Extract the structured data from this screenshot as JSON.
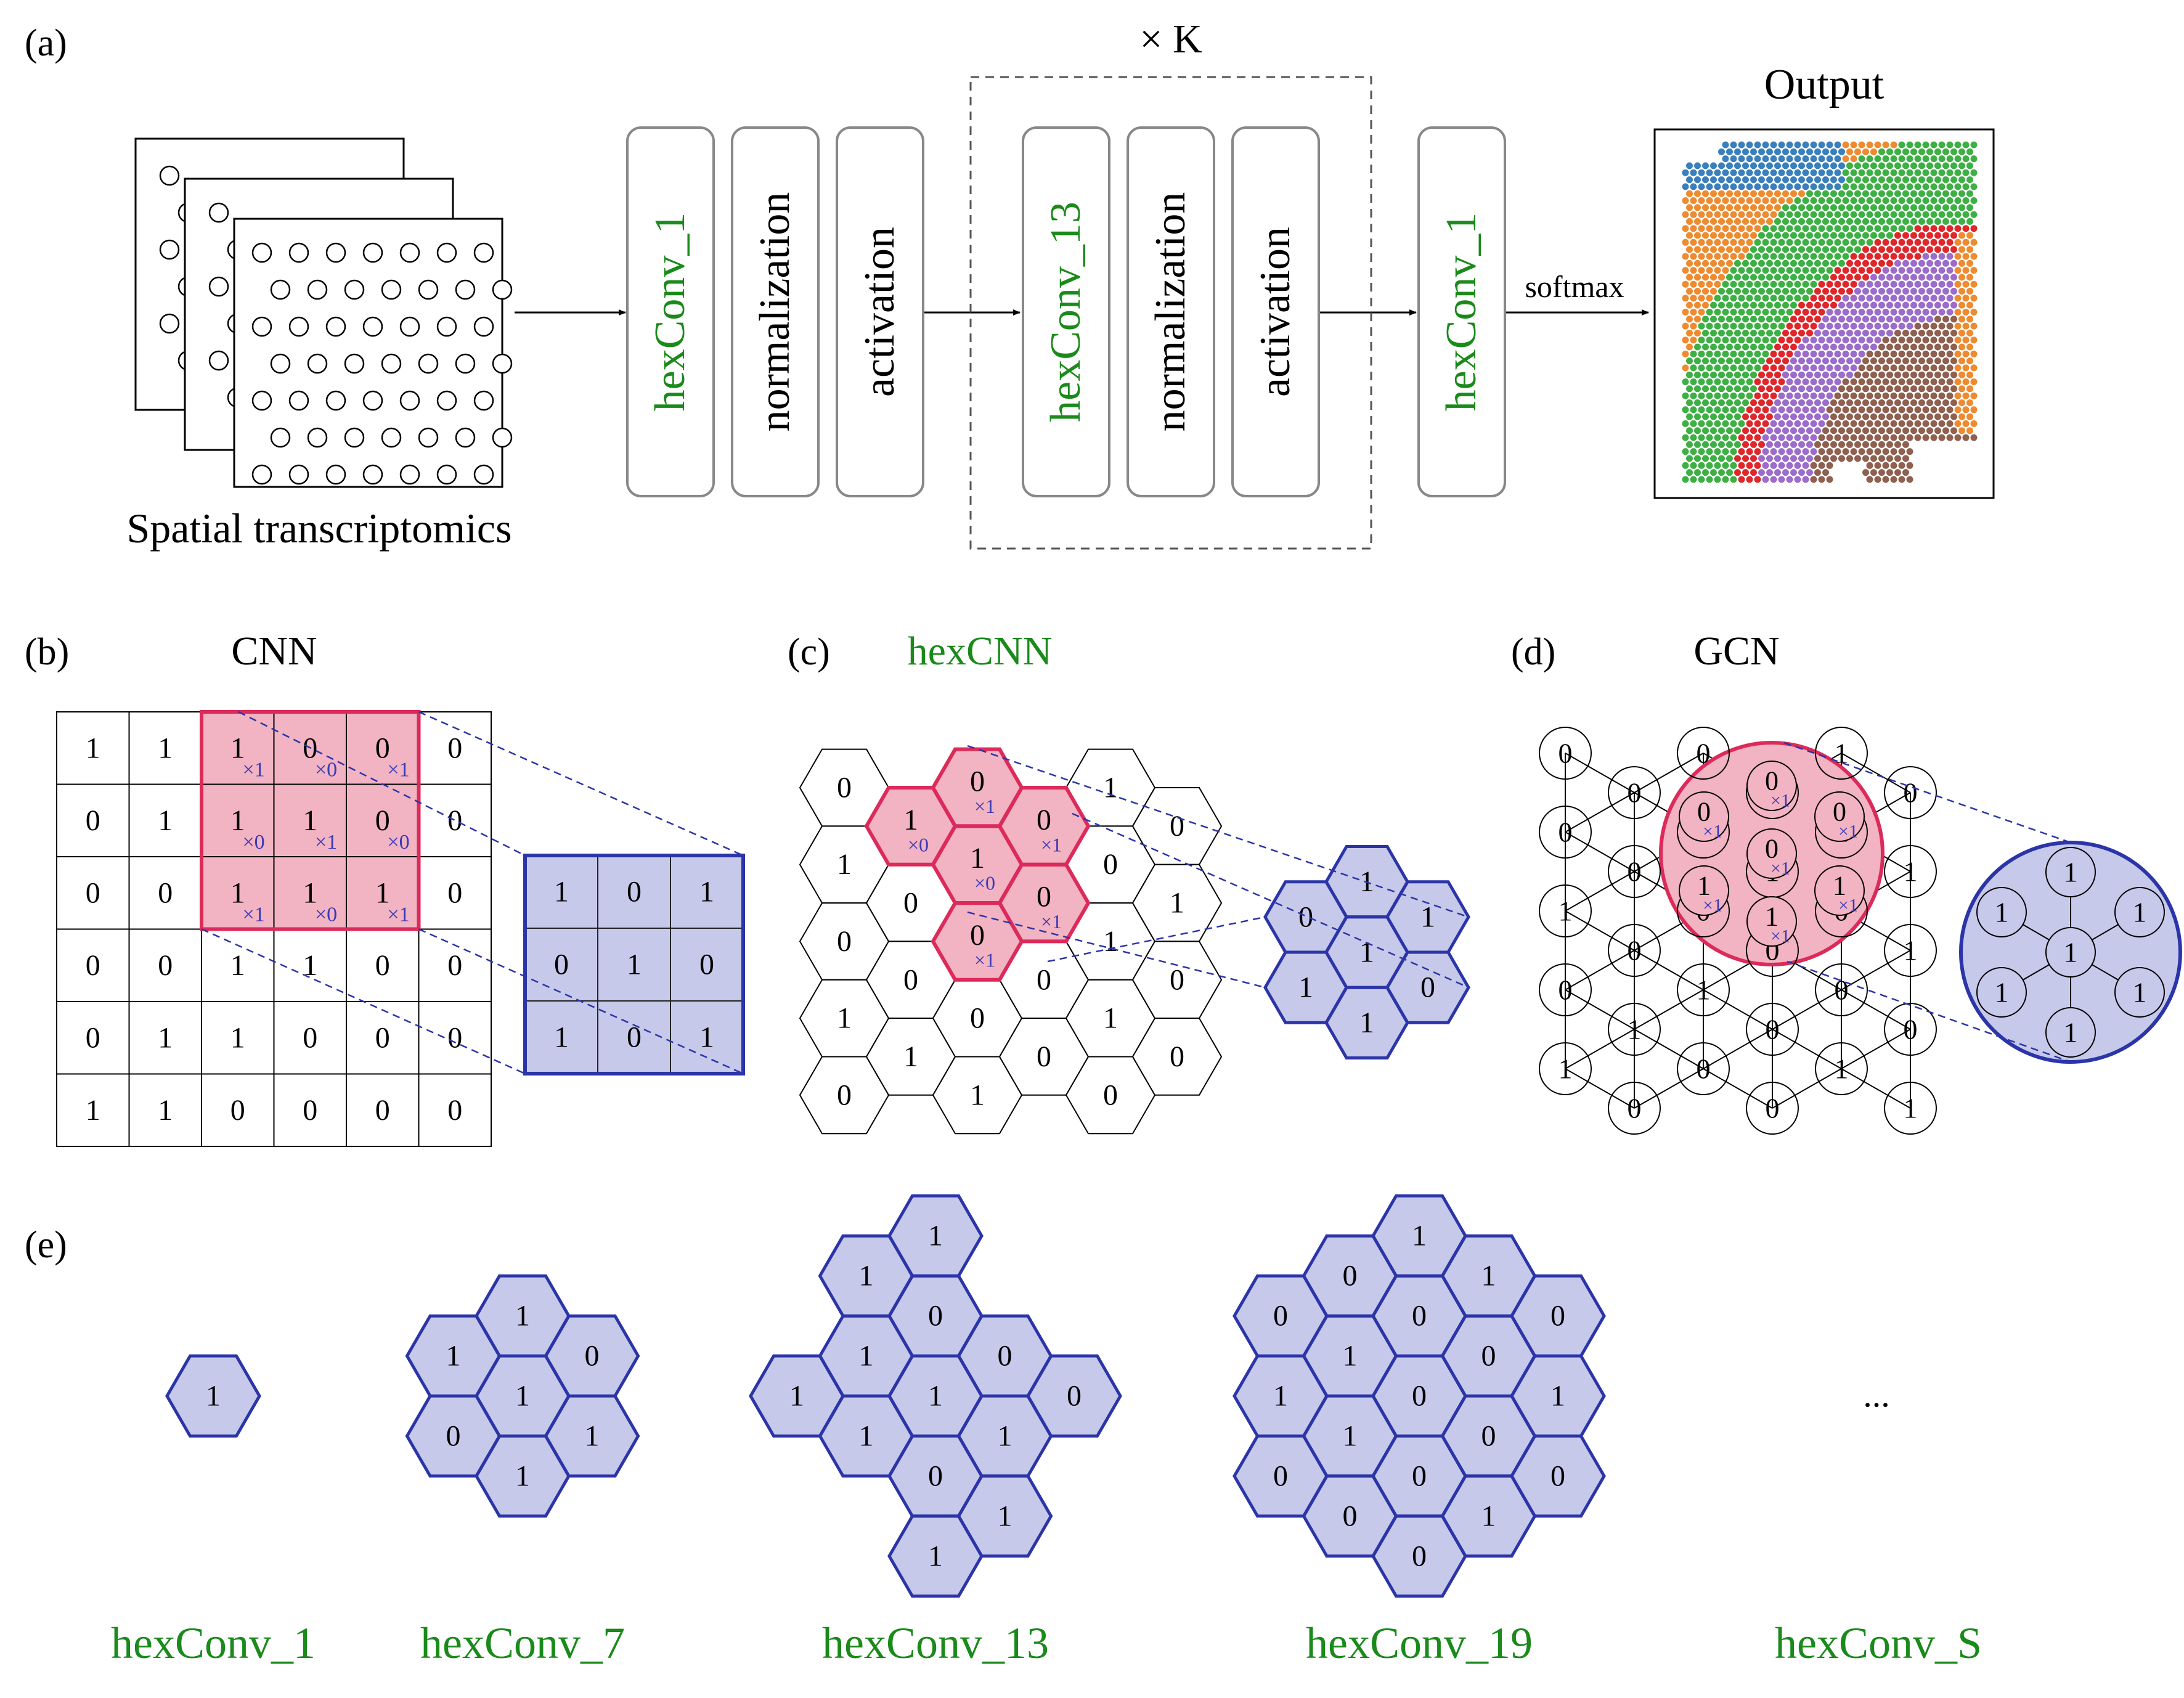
{
  "colors": {
    "green": "#1a8a1a",
    "blue": "#2b35a8",
    "blue_fill": "#c7c9eb",
    "blue_text": "#3a3ab5",
    "red": "#dc2a5a",
    "red_fill": "#f2b3c3",
    "box_stroke": "#888888",
    "cluster_colors": [
      "#3a7fbd",
      "#f08a2e",
      "#3cb043",
      "#e0262a",
      "#9b6ccb",
      "#8f5f4f",
      "#e87fcf"
    ]
  },
  "panel_a": {
    "label": "(a)",
    "input_label": "Spatial transcriptomics",
    "repeat_label": "× K",
    "boxes": [
      "hexConv_1",
      "normalization",
      "activation",
      "hexConv_13",
      "normalization",
      "activation",
      "hexConv_1"
    ],
    "softmax_label": "softmax",
    "output_label": "Output"
  },
  "panel_b": {
    "label": "(b)",
    "title": "CNN",
    "grid": [
      [
        "1",
        "1",
        "1",
        "0",
        "0",
        "0"
      ],
      [
        "0",
        "1",
        "1",
        "1",
        "0",
        "0"
      ],
      [
        "0",
        "0",
        "1",
        "1",
        "1",
        "0"
      ],
      [
        "0",
        "0",
        "1",
        "1",
        "0",
        "0"
      ],
      [
        "0",
        "1",
        "1",
        "0",
        "0",
        "0"
      ],
      [
        "1",
        "1",
        "0",
        "0",
        "0",
        "0"
      ]
    ],
    "weights": [
      [
        "×1",
        "×0",
        "×1"
      ],
      [
        "×0",
        "×1",
        "×0"
      ],
      [
        "×1",
        "×0",
        "×1"
      ]
    ],
    "output": [
      [
        "1",
        "0",
        "1"
      ],
      [
        "0",
        "1",
        "0"
      ],
      [
        "1",
        "0",
        "1"
      ]
    ]
  },
  "panel_c": {
    "label": "(c)",
    "title": "hexCNN",
    "cells": [
      [
        "0",
        "0",
        "1"
      ],
      [
        "0",
        "1",
        "0",
        "0"
      ],
      [
        "0",
        "0",
        "0",
        "1"
      ],
      [
        "0",
        "1",
        "0",
        "1"
      ],
      [
        "0",
        "0",
        "1",
        "1"
      ],
      [
        "0",
        "1",
        "1",
        "0"
      ],
      [
        "1",
        "0",
        "0",
        "0"
      ],
      [
        "1",
        "0",
        "0",
        "0"
      ]
    ],
    "hex_values": [
      "0",
      "1",
      "0",
      "1",
      "0",
      "1",
      "0",
      "0",
      "1",
      "0",
      "1",
      "0",
      "0",
      "1",
      "0",
      "0",
      "0",
      "0",
      "1",
      "0",
      "1",
      "1",
      "0",
      "0",
      "1",
      "0",
      "0",
      "1"
    ],
    "kernel_weights": [
      "×1",
      "×0",
      "×1",
      "×1",
      "×1",
      "×0",
      "×1"
    ],
    "output": [
      "1",
      "0",
      "1",
      "1",
      "1",
      "0",
      "1"
    ]
  },
  "panel_d": {
    "label": "(d)",
    "title": "GCN",
    "node_values": [
      "0",
      "0",
      "1",
      "0",
      "1",
      "0",
      "0",
      "0",
      "1",
      "0",
      "0",
      "1",
      "0",
      "1",
      "0",
      "1",
      "1",
      "0",
      "0",
      "0",
      "1",
      "1",
      "0",
      "0",
      "1",
      "0",
      "1",
      "1",
      "0",
      "1",
      "0",
      "1",
      "0",
      "0"
    ],
    "kernel_values": [
      "0",
      "0",
      "0",
      "0",
      "1",
      "1",
      "1"
    ],
    "kernel_weights": [
      "×1",
      "×1",
      "×1",
      "×1",
      "×1",
      "×1",
      "×1"
    ],
    "output": [
      "1",
      "1",
      "1",
      "1",
      "1",
      "1",
      "1"
    ]
  },
  "panel_e": {
    "label": "(e)",
    "kernels": [
      {
        "name": "hexConv_1",
        "values": [
          "1"
        ]
      },
      {
        "name": "hexConv_7",
        "values": [
          "1",
          "0",
          "1",
          "1",
          "1",
          "0",
          "1"
        ]
      },
      {
        "name": "hexConv_13",
        "values": [
          "1",
          "1",
          "0",
          "1",
          "0",
          "0",
          "1",
          "1",
          "0",
          "1",
          "1",
          "1",
          "1"
        ]
      },
      {
        "name": "hexConv_19",
        "values": [
          "0",
          "1",
          "0",
          "0",
          "1",
          "1",
          "0",
          "1",
          "0",
          "0",
          "0",
          "0",
          "1",
          "0",
          "0",
          "1",
          "0",
          "1",
          "0"
        ]
      },
      {
        "name": "hexConv_S",
        "values": []
      }
    ],
    "ellipsis": "..."
  }
}
